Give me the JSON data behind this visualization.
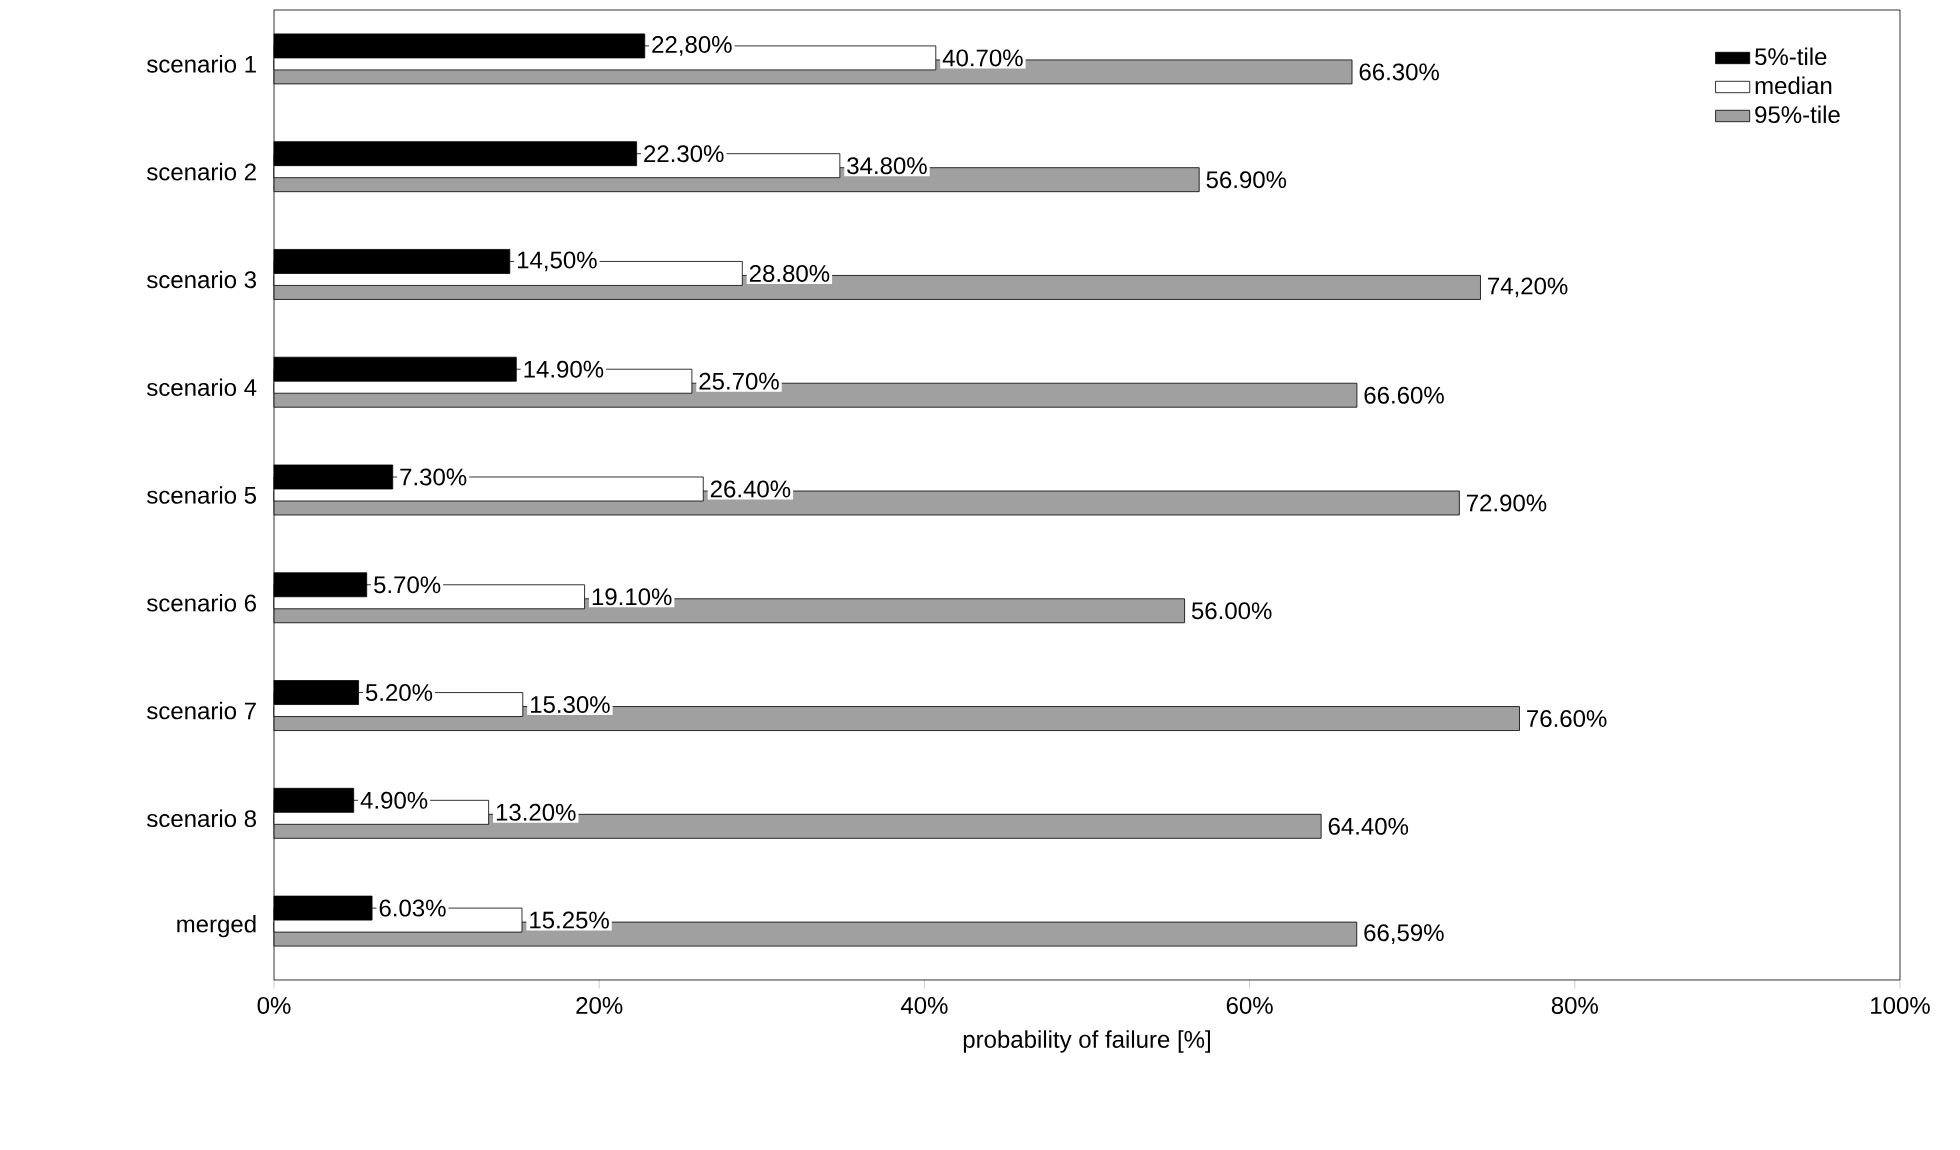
{
  "chart_data": {
    "type": "bar",
    "orientation": "horizontal",
    "xlabel": "probability of failure [%]",
    "categories": [
      "scenario 1",
      "scenario 2",
      "scenario 3",
      "scenario 4",
      "scenario 5",
      "scenario 6",
      "scenario 7",
      "scenario 8",
      "merged"
    ],
    "series": [
      {
        "name": "5%-tile",
        "color": "#000000",
        "values": [
          22.8,
          22.3,
          14.5,
          14.9,
          7.3,
          5.7,
          5.2,
          4.9,
          6.03
        ],
        "value_labels": [
          "22,80%",
          "22.30%",
          "14,50%",
          "14.90%",
          "7.30%",
          "5.70%",
          "5.20%",
          "4.90%",
          "6.03%"
        ]
      },
      {
        "name": "median",
        "color": "#ffffff",
        "values": [
          40.7,
          34.8,
          28.8,
          25.7,
          26.4,
          19.1,
          15.3,
          13.2,
          15.25
        ],
        "value_labels": [
          "40.70%",
          "34.80%",
          "28.80%",
          "25.70%",
          "26.40%",
          "19.10%",
          "15.30%",
          "13.20%",
          "15.25%"
        ]
      },
      {
        "name": "95%-tile",
        "color": "#a0a0a0",
        "values": [
          66.3,
          56.9,
          74.2,
          66.6,
          72.9,
          56.0,
          76.6,
          64.4,
          66.59
        ],
        "value_labels": [
          "66.30%",
          "56.90%",
          "74,20%",
          "66.60%",
          "72.90%",
          "56.00%",
          "76.60%",
          "64.40%",
          "66,59%"
        ]
      }
    ],
    "xlim": [
      0,
      100
    ],
    "xticks": [
      {
        "value": 0,
        "label": "0%"
      },
      {
        "value": 20,
        "label": "20%"
      },
      {
        "value": 40,
        "label": "40%"
      },
      {
        "value": 60,
        "label": "60%"
      },
      {
        "value": 80,
        "label": "80%"
      },
      {
        "value": 100,
        "label": "100%"
      }
    ],
    "legend": "top right",
    "grid": false
  }
}
